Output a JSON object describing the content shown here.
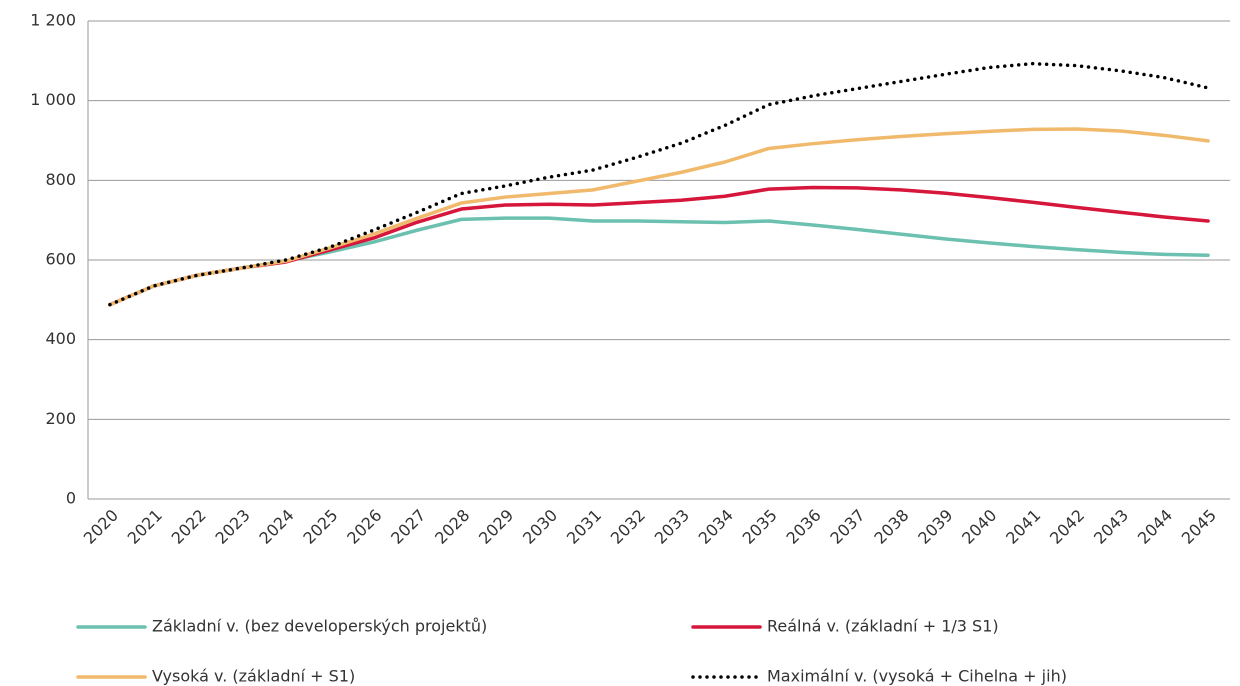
{
  "chart_data": {
    "type": "line",
    "categories": [
      "2020",
      "2021",
      "2022",
      "2023",
      "2024",
      "2025",
      "2026",
      "2027",
      "2028",
      "2029",
      "2030",
      "2031",
      "2032",
      "2033",
      "2034",
      "2035",
      "2036",
      "2037",
      "2038",
      "2039",
      "2040",
      "2041",
      "2042",
      "2043",
      "2044",
      "2045"
    ],
    "series": [
      {
        "name": "Základní v. (bez developerských projektů)",
        "color": "#6cc0b0",
        "style": "solid",
        "values": [
          488,
          535,
          562,
          580,
          597,
          620,
          645,
          675,
          702,
          705,
          705,
          698,
          698,
          696,
          694,
          698,
          688,
          677,
          665,
          653,
          643,
          634,
          626,
          619,
          614,
          612
        ]
      },
      {
        "name": "Reálná v. (základní + 1/3 S1)",
        "color": "#d6163a",
        "style": "solid",
        "values": [
          488,
          535,
          562,
          580,
          595,
          625,
          655,
          695,
          728,
          738,
          740,
          738,
          744,
          750,
          760,
          778,
          782,
          781,
          776,
          768,
          757,
          745,
          732,
          720,
          708,
          698
        ]
      },
      {
        "name": "Vysoká v. (základní + S1)",
        "color": "#f0b96b",
        "style": "solid",
        "values": [
          488,
          535,
          562,
          580,
          597,
          630,
          665,
          705,
          743,
          758,
          767,
          776,
          798,
          820,
          846,
          880,
          892,
          902,
          910,
          917,
          923,
          928,
          929,
          924,
          913,
          899
        ]
      },
      {
        "name": "Maximální v. (vysoká + Cihelna + jih)",
        "color": "#000000",
        "style": "dotted",
        "values": [
          488,
          535,
          562,
          580,
          600,
          632,
          675,
          720,
          767,
          786,
          808,
          826,
          858,
          893,
          938,
          990,
          1012,
          1030,
          1048,
          1066,
          1083,
          1093,
          1088,
          1075,
          1058,
          1032
        ]
      }
    ],
    "ylim": [
      0,
      1200
    ],
    "yticks": [
      0,
      200,
      400,
      600,
      800,
      {
        "value": 1000,
        "label": "1 000"
      },
      {
        "value": 1200,
        "label": "1 200"
      }
    ],
    "grid": true
  }
}
